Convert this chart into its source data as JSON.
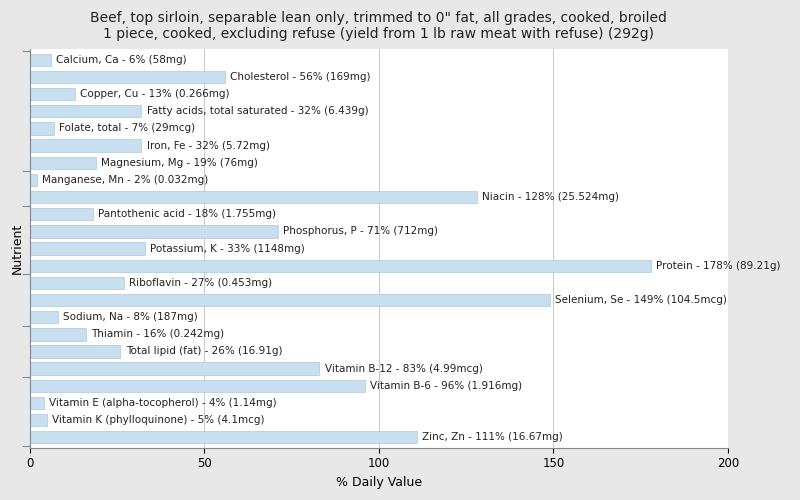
{
  "title": "Beef, top sirloin, separable lean only, trimmed to 0\" fat, all grades, cooked, broiled\n1 piece, cooked, excluding refuse (yield from 1 lb raw meat with refuse) (292g)",
  "xlabel": "% Daily Value",
  "ylabel": "Nutrient",
  "xlim": [
    0,
    200
  ],
  "xticks": [
    0,
    50,
    100,
    150,
    200
  ],
  "bar_color": "#c8dff0",
  "bar_edge_color": "#a0c0d8",
  "background_color": "#e8e8e8",
  "plot_bg_color": "#ffffff",
  "title_fontsize": 10,
  "label_fontsize": 7.5,
  "axis_label_fontsize": 9,
  "tick_fontsize": 8.5,
  "nutrients": [
    {
      "name": "Calcium, Ca - 6% (58mg)",
      "value": 6
    },
    {
      "name": "Cholesterol - 56% (169mg)",
      "value": 56
    },
    {
      "name": "Copper, Cu - 13% (0.266mg)",
      "value": 13
    },
    {
      "name": "Fatty acids, total saturated - 32% (6.439g)",
      "value": 32
    },
    {
      "name": "Folate, total - 7% (29mcg)",
      "value": 7
    },
    {
      "name": "Iron, Fe - 32% (5.72mg)",
      "value": 32
    },
    {
      "name": "Magnesium, Mg - 19% (76mg)",
      "value": 19
    },
    {
      "name": "Manganese, Mn - 2% (0.032mg)",
      "value": 2
    },
    {
      "name": "Niacin - 128% (25.524mg)",
      "value": 128
    },
    {
      "name": "Pantothenic acid - 18% (1.755mg)",
      "value": 18
    },
    {
      "name": "Phosphorus, P - 71% (712mg)",
      "value": 71
    },
    {
      "name": "Potassium, K - 33% (1148mg)",
      "value": 33
    },
    {
      "name": "Protein - 178% (89.21g)",
      "value": 178
    },
    {
      "name": "Riboflavin - 27% (0.453mg)",
      "value": 27
    },
    {
      "name": "Selenium, Se - 149% (104.5mcg)",
      "value": 149
    },
    {
      "name": "Sodium, Na - 8% (187mg)",
      "value": 8
    },
    {
      "name": "Thiamin - 16% (0.242mg)",
      "value": 16
    },
    {
      "name": "Total lipid (fat) - 26% (16.91g)",
      "value": 26
    },
    {
      "name": "Vitamin B-12 - 83% (4.99mcg)",
      "value": 83
    },
    {
      "name": "Vitamin B-6 - 96% (1.916mg)",
      "value": 96
    },
    {
      "name": "Vitamin E (alpha-tocopherol) - 4% (1.14mg)",
      "value": 4
    },
    {
      "name": "Vitamin K (phylloquinone) - 5% (4.1mcg)",
      "value": 5
    },
    {
      "name": "Zinc, Zn - 111% (16.67mg)",
      "value": 111
    }
  ],
  "group_tick_indices": [
    7,
    9,
    13,
    16,
    19
  ]
}
